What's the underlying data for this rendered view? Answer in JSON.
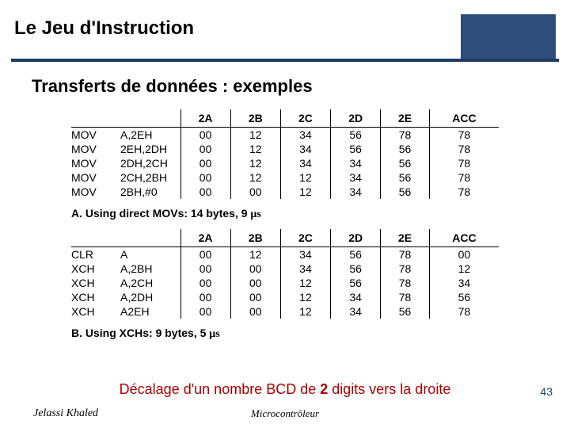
{
  "title": {
    "text": "Le Jeu d'Instruction",
    "fontsize": 24
  },
  "subtitle": {
    "text": "Transferts de données : exemples",
    "fontsize": 22
  },
  "header_band_color": "#2f4d7a",
  "underline_color": "#1f3a63",
  "tableA": {
    "columns": [
      "2A",
      "2B",
      "2C",
      "2D",
      "2E",
      "ACC"
    ],
    "rows": [
      {
        "mnem": "MOV",
        "ops": "A,2EH",
        "vals": [
          "00",
          "12",
          "34",
          "56",
          "78",
          "78"
        ]
      },
      {
        "mnem": "MOV",
        "ops": "2EH,2DH",
        "vals": [
          "00",
          "12",
          "34",
          "56",
          "56",
          "78"
        ]
      },
      {
        "mnem": "MOV",
        "ops": "2DH,2CH",
        "vals": [
          "00",
          "12",
          "34",
          "34",
          "56",
          "78"
        ]
      },
      {
        "mnem": "MOV",
        "ops": "2CH,2BH",
        "vals": [
          "00",
          "12",
          "12",
          "34",
          "56",
          "78"
        ]
      },
      {
        "mnem": "MOV",
        "ops": "2BH,#0",
        "vals": [
          "00",
          "00",
          "12",
          "34",
          "56",
          "78"
        ]
      }
    ],
    "caption_prefix": "A. Using direct MOVs: 14 bytes, 9 ",
    "caption_unit": "μs"
  },
  "tableB": {
    "columns": [
      "2A",
      "2B",
      "2C",
      "2D",
      "2E",
      "ACC"
    ],
    "rows": [
      {
        "mnem": "CLR",
        "ops": "A",
        "vals": [
          "00",
          "12",
          "34",
          "56",
          "78",
          "00"
        ]
      },
      {
        "mnem": "XCH",
        "ops": "A,2BH",
        "vals": [
          "00",
          "00",
          "34",
          "56",
          "78",
          "12"
        ]
      },
      {
        "mnem": "XCH",
        "ops": "A,2CH",
        "vals": [
          "00",
          "00",
          "12",
          "56",
          "78",
          "34"
        ]
      },
      {
        "mnem": "XCH",
        "ops": "A,2DH",
        "vals": [
          "00",
          "00",
          "12",
          "34",
          "78",
          "56"
        ]
      },
      {
        "mnem": "XCH",
        "ops": "A2EH",
        "vals": [
          "00",
          "00",
          "12",
          "34",
          "56",
          "78"
        ]
      }
    ],
    "caption_prefix": "B. Using XCHs: 9 bytes, 5 ",
    "caption_unit": "μs"
  },
  "bottom_caption": {
    "pre": "Décalage d'un nombre BCD de ",
    "bold": "2",
    "post": " digits vers la droite",
    "color": "#a00000"
  },
  "footer": {
    "author": "Jelassi Khaled",
    "course": "Microcontrôleur"
  },
  "page_number": "43"
}
